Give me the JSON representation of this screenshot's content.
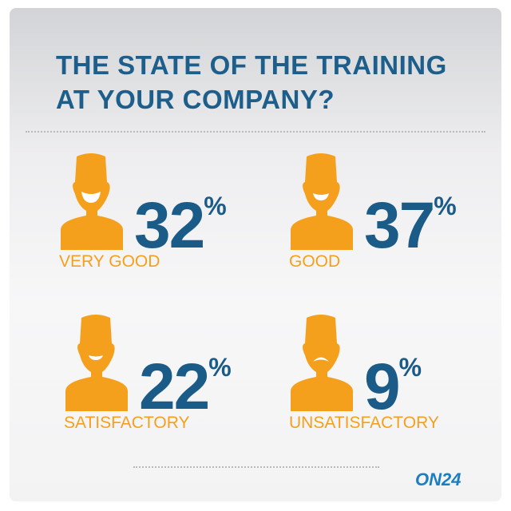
{
  "title_line1": "THE STATE OF THE TRAINING",
  "title_line2": "AT YOUR COMPANY?",
  "colors": {
    "orange": "#f5a01c",
    "blue": "#1b5b87"
  },
  "logo": "ON24",
  "chart_data": {
    "type": "pictogram",
    "title": "THE STATE OF THE TRAINING AT YOUR COMPANY?",
    "categories": [
      "VERY GOOD",
      "GOOD",
      "SATISFACTORY",
      "UNSATISFACTORY"
    ],
    "values": [
      32,
      37,
      22,
      9
    ],
    "unit": "%",
    "items": [
      {
        "label": "VERY GOOD",
        "value": "32",
        "face": "big-smile"
      },
      {
        "label": "GOOD",
        "value": "37",
        "face": "smile"
      },
      {
        "label": "SATISFACTORY",
        "value": "22",
        "face": "small-smile"
      },
      {
        "label": "UNSATISFACTORY",
        "value": "9",
        "face": "frown"
      }
    ]
  }
}
